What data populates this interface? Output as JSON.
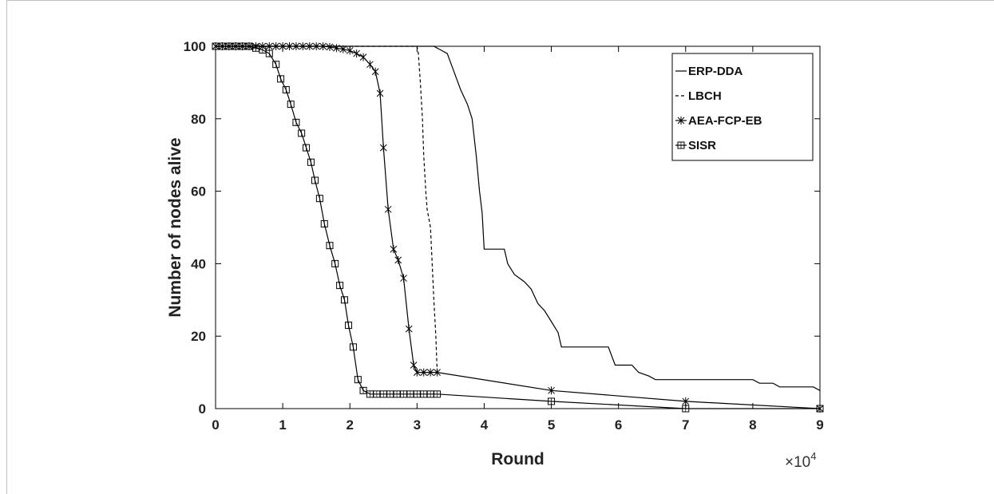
{
  "chart_data": {
    "type": "line",
    "title": "",
    "xlabel": "Round",
    "ylabel": "Number of nodes alive",
    "x_multiplier_label": "×10",
    "x_multiplier_exp": "4",
    "xlim": [
      0,
      9
    ],
    "ylim": [
      0,
      100
    ],
    "xticks": [
      "0",
      "1",
      "2",
      "3",
      "4",
      "5",
      "6",
      "7",
      "8",
      "9"
    ],
    "yticks": [
      "0",
      "20",
      "40",
      "60",
      "80",
      "100"
    ],
    "grid": false,
    "legend_position": "top-right",
    "series": [
      {
        "name": "ERP-DDA",
        "style": "solid",
        "marker": "none",
        "points": [
          [
            0,
            100
          ],
          [
            3.25,
            100
          ],
          [
            3.35,
            99
          ],
          [
            3.45,
            98
          ],
          [
            3.55,
            93
          ],
          [
            3.65,
            88
          ],
          [
            3.75,
            84
          ],
          [
            3.82,
            80
          ],
          [
            3.88,
            70
          ],
          [
            3.93,
            60
          ],
          [
            3.97,
            54
          ],
          [
            4.0,
            44
          ],
          [
            4.3,
            44
          ],
          [
            4.35,
            40
          ],
          [
            4.45,
            37
          ],
          [
            4.6,
            35
          ],
          [
            4.7,
            33
          ],
          [
            4.8,
            29
          ],
          [
            4.9,
            27
          ],
          [
            5.0,
            24
          ],
          [
            5.1,
            21
          ],
          [
            5.15,
            17
          ],
          [
            5.6,
            17
          ],
          [
            5.7,
            17
          ],
          [
            5.85,
            17
          ],
          [
            5.95,
            12
          ],
          [
            6.2,
            12
          ],
          [
            6.3,
            10
          ],
          [
            6.45,
            9
          ],
          [
            6.55,
            8
          ],
          [
            7.0,
            8
          ],
          [
            8.0,
            8
          ],
          [
            8.1,
            7
          ],
          [
            8.3,
            7
          ],
          [
            8.4,
            6
          ],
          [
            8.9,
            6
          ],
          [
            9.0,
            5
          ]
        ]
      },
      {
        "name": "LBCH",
        "style": "dashed",
        "marker": "none",
        "points": [
          [
            0,
            100
          ],
          [
            3.0,
            100
          ],
          [
            3.02,
            98
          ],
          [
            3.05,
            90
          ],
          [
            3.08,
            80
          ],
          [
            3.1,
            70
          ],
          [
            3.13,
            60
          ],
          [
            3.15,
            55
          ],
          [
            3.2,
            50
          ],
          [
            3.25,
            30
          ],
          [
            3.28,
            20
          ],
          [
            3.3,
            10
          ]
        ]
      },
      {
        "name": "AEA-FCP-EB",
        "style": "solid",
        "marker": "star",
        "points": [
          [
            0,
            100
          ],
          [
            0.1,
            100
          ],
          [
            0.2,
            100
          ],
          [
            0.3,
            100
          ],
          [
            0.4,
            100
          ],
          [
            0.5,
            100
          ],
          [
            0.6,
            100
          ],
          [
            0.7,
            100
          ],
          [
            0.8,
            100
          ],
          [
            0.9,
            100
          ],
          [
            1.0,
            100
          ],
          [
            1.1,
            100
          ],
          [
            1.2,
            100
          ],
          [
            1.3,
            100
          ],
          [
            1.4,
            100
          ],
          [
            1.5,
            100
          ],
          [
            1.6,
            100
          ],
          [
            1.7,
            99.8
          ],
          [
            1.8,
            99.5
          ],
          [
            1.9,
            99.2
          ],
          [
            2.0,
            98.8
          ],
          [
            2.1,
            98
          ],
          [
            2.2,
            97
          ],
          [
            2.3,
            95
          ],
          [
            2.38,
            93
          ],
          [
            2.45,
            87
          ],
          [
            2.5,
            72
          ],
          [
            2.57,
            55
          ],
          [
            2.65,
            44
          ],
          [
            2.72,
            41
          ],
          [
            2.8,
            36
          ],
          [
            2.88,
            22
          ],
          [
            2.95,
            12
          ],
          [
            3.0,
            10
          ],
          [
            3.1,
            10
          ],
          [
            3.2,
            10
          ],
          [
            3.3,
            10
          ],
          [
            5.0,
            5
          ],
          [
            7.0,
            2
          ],
          [
            9.0,
            0
          ]
        ]
      },
      {
        "name": "SISR",
        "style": "solid",
        "marker": "square",
        "points": [
          [
            0,
            100
          ],
          [
            0.1,
            100
          ],
          [
            0.2,
            100
          ],
          [
            0.3,
            100
          ],
          [
            0.4,
            100
          ],
          [
            0.5,
            100
          ],
          [
            0.6,
            99.5
          ],
          [
            0.7,
            99
          ],
          [
            0.8,
            98
          ],
          [
            0.9,
            95
          ],
          [
            0.97,
            91
          ],
          [
            1.05,
            88
          ],
          [
            1.12,
            84
          ],
          [
            1.2,
            79
          ],
          [
            1.28,
            76
          ],
          [
            1.35,
            72
          ],
          [
            1.42,
            68
          ],
          [
            1.48,
            63
          ],
          [
            1.55,
            58
          ],
          [
            1.62,
            51
          ],
          [
            1.7,
            45
          ],
          [
            1.78,
            40
          ],
          [
            1.85,
            34
          ],
          [
            1.92,
            30
          ],
          [
            1.98,
            23
          ],
          [
            2.05,
            17
          ],
          [
            2.12,
            8
          ],
          [
            2.2,
            5
          ],
          [
            2.3,
            4
          ],
          [
            2.4,
            4
          ],
          [
            2.5,
            4
          ],
          [
            2.6,
            4
          ],
          [
            2.7,
            4
          ],
          [
            2.8,
            4
          ],
          [
            2.9,
            4
          ],
          [
            3.0,
            4
          ],
          [
            3.1,
            4
          ],
          [
            3.2,
            4
          ],
          [
            3.3,
            4
          ],
          [
            5.0,
            2
          ],
          [
            7.0,
            0
          ],
          [
            9.0,
            0
          ]
        ]
      }
    ]
  }
}
